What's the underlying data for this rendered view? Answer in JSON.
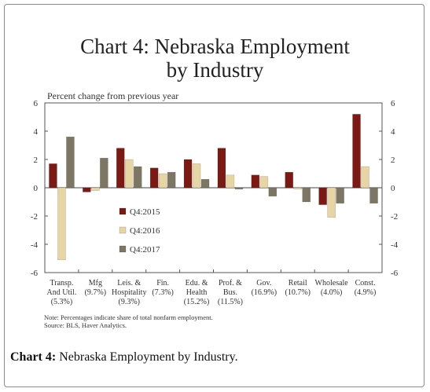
{
  "caption": {
    "label": "Chart 4:",
    "text": " Nebraska Employment by Industry."
  },
  "chart_data": {
    "type": "bar",
    "title_line1": "Chart 4: Nebraska Employment",
    "title_line2": "by Industry",
    "ylabel": "Percent change from previous year",
    "ylim": [
      -6,
      6
    ],
    "yticks_left": [
      "6",
      "4",
      "2",
      "0",
      "-2",
      "-4",
      "-6"
    ],
    "yticks_right": [
      "6",
      "4",
      "2",
      "0",
      "-2",
      "-4",
      "-6"
    ],
    "ytick_values": [
      6,
      4,
      2,
      0,
      -2,
      -4,
      -6
    ],
    "categories": [
      {
        "line1": "Transp.",
        "line2": "And Util.",
        "line3": "(5.3%)"
      },
      {
        "line1": "Mfg",
        "line2": "(9.7%)",
        "line3": ""
      },
      {
        "line1": "Leis. &",
        "line2": "Hospitality",
        "line3": "(9.3%)"
      },
      {
        "line1": "Fin.",
        "line2": "(7.3%)",
        "line3": ""
      },
      {
        "line1": "Edu. &",
        "line2": "Health",
        "line3": "(15.2%)"
      },
      {
        "line1": "Prof. &",
        "line2": "Bus.",
        "line3": "(11.5%)"
      },
      {
        "line1": "Gov.",
        "line2": "(16.9%)",
        "line3": ""
      },
      {
        "line1": "Retail",
        "line2": "(10.7%)",
        "line3": ""
      },
      {
        "line1": "Wholesale",
        "line2": "(4.0%)",
        "line3": ""
      },
      {
        "line1": "Const.",
        "line2": "(4.9%)",
        "line3": ""
      }
    ],
    "series": [
      {
        "name": "Q4:2015",
        "color": "#7b1a14",
        "values": [
          1.7,
          -0.3,
          2.8,
          1.4,
          2.0,
          2.8,
          0.9,
          1.1,
          -1.2,
          5.2
        ]
      },
      {
        "name": "Q4:2016",
        "color": "#e8d5a6",
        "values": [
          -5.1,
          -0.2,
          2.0,
          1.0,
          1.7,
          0.9,
          0.8,
          -0.1,
          -2.1,
          1.5
        ]
      },
      {
        "name": "Q4:2017",
        "color": "#7e7664",
        "values": [
          3.6,
          2.1,
          1.5,
          1.1,
          0.6,
          -0.1,
          -0.6,
          -1.0,
          -1.1,
          -1.1
        ]
      }
    ],
    "legend_position": "left-center",
    "grid": false,
    "note_line1": "Note: Percentages indicate share of total nonfarm employment.",
    "note_line2": "Source: BLS, Haver Analytics."
  }
}
